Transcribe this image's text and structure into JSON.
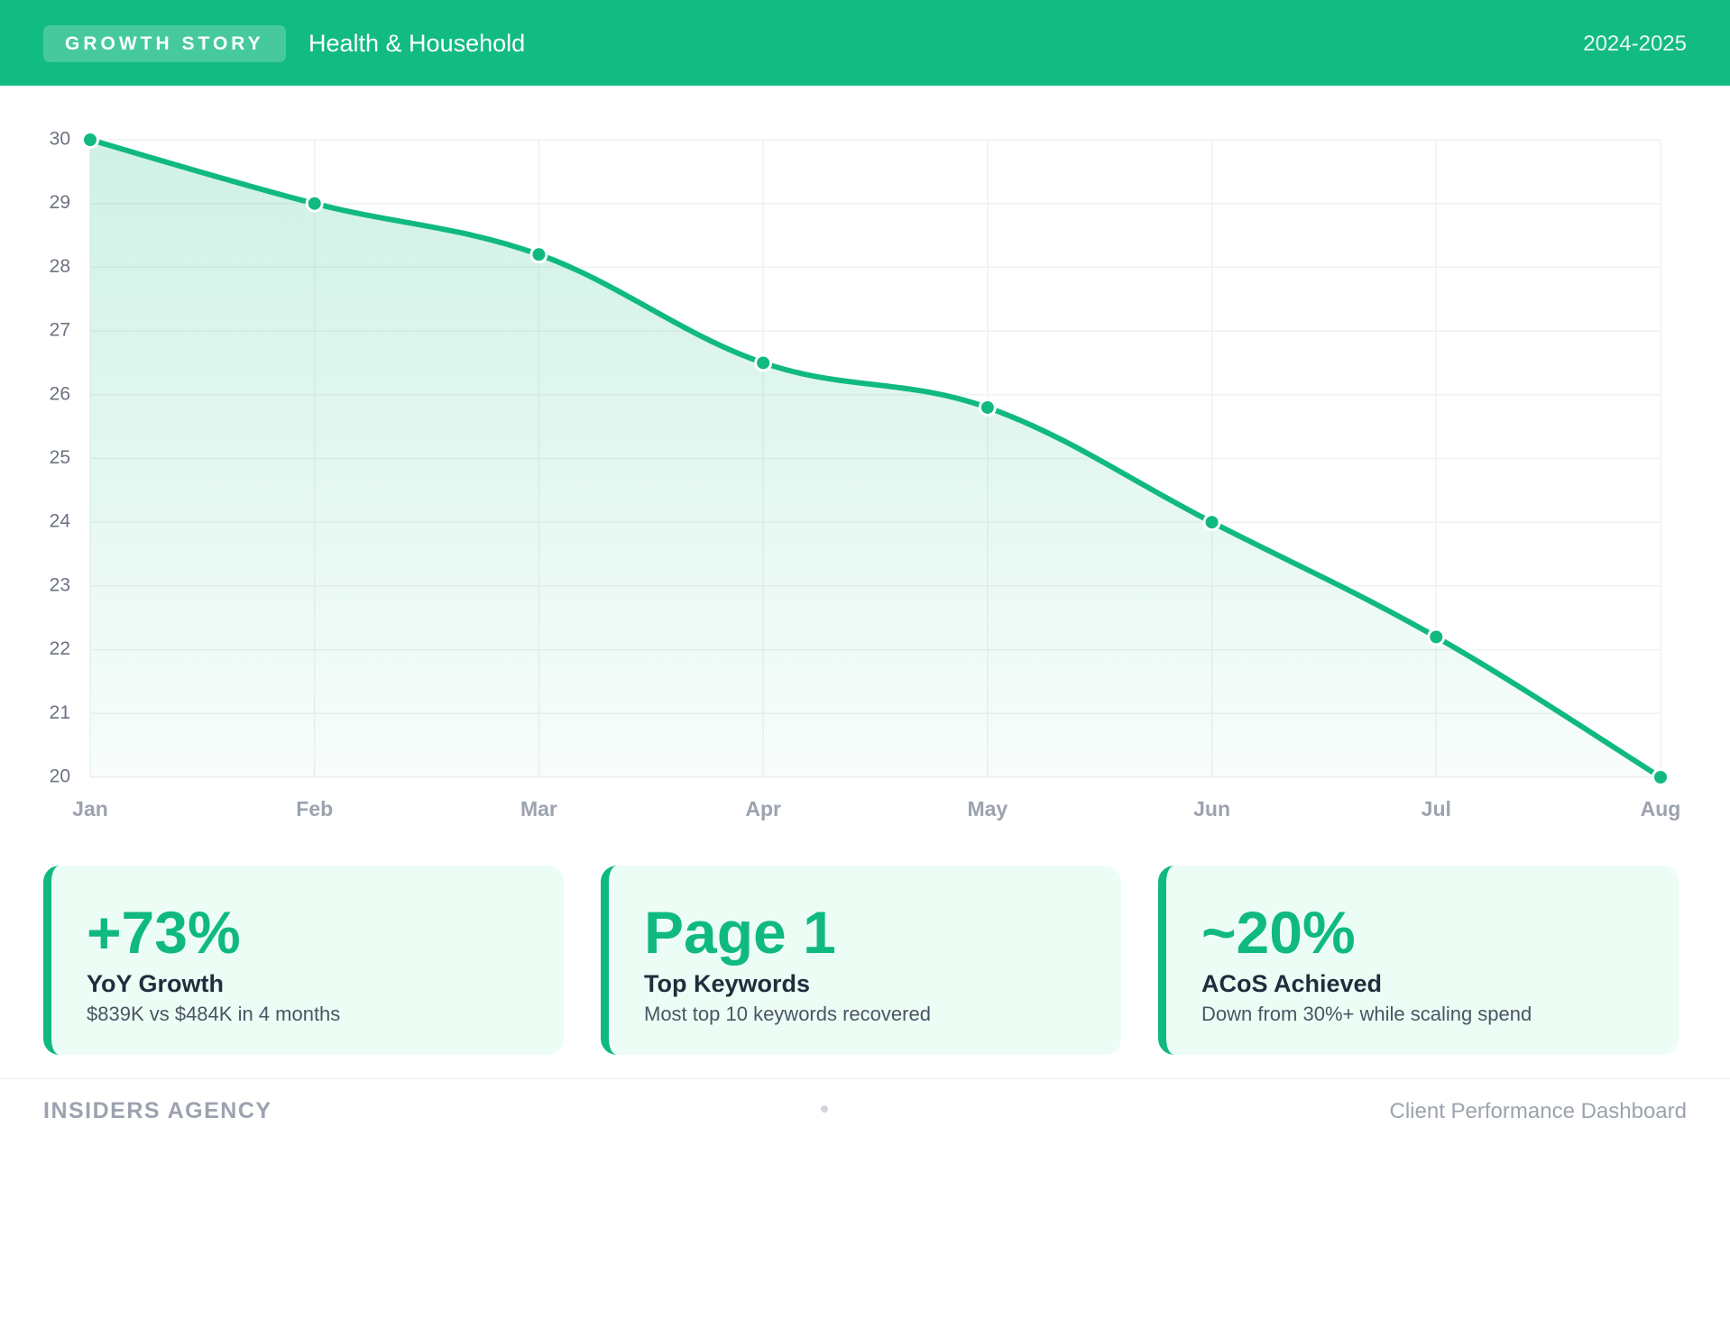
{
  "header": {
    "badge": "GROWTH STORY",
    "title": "Health & Household",
    "period": "2024-2025"
  },
  "chart_data": {
    "type": "line",
    "categories": [
      "Jan",
      "Feb",
      "Mar",
      "Apr",
      "May",
      "Jun",
      "Jul",
      "Aug"
    ],
    "values": [
      30,
      29,
      28.2,
      26.5,
      25.8,
      24,
      22.2,
      20
    ],
    "color": "#10b981",
    "ylim": [
      20,
      30
    ],
    "yticks": [
      20,
      21,
      22,
      23,
      24,
      25,
      26,
      27,
      28,
      29,
      30
    ],
    "grid": true
  },
  "cards": [
    {
      "value": "+73%",
      "label": "YoY Growth",
      "detail": "$839K vs $484K in 4 months"
    },
    {
      "value": "Page 1",
      "label": "Top Keywords",
      "detail": "Most top 10 keywords recovered"
    },
    {
      "value": "~20%",
      "label": "ACoS Achieved",
      "detail": "Down from 30%+ while scaling spend"
    }
  ],
  "footer": {
    "brand": "INSIDERS AGENCY",
    "tagline": "Client Performance Dashboard"
  }
}
